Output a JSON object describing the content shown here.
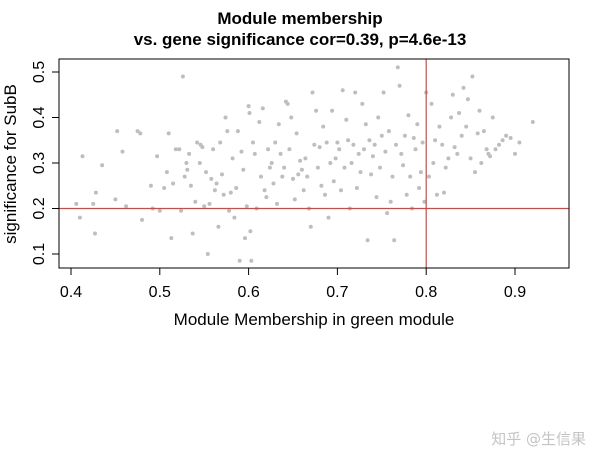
{
  "chart_data": {
    "type": "scatter",
    "title": "Module membership",
    "subtitle": "vs. gene significance cor=0.39, p=4.6e-13",
    "xlabel": "Module Membership in green module",
    "ylabel": "significance for SubB",
    "xlim": [
      0.385,
      0.94
    ],
    "ylim": [
      0.07,
      0.53
    ],
    "xticks": [
      "0.4",
      "0.5",
      "0.6",
      "0.7",
      "0.8",
      "0.9"
    ],
    "yticks": [
      "0.1",
      "0.2",
      "0.3",
      "0.4",
      "0.5"
    ],
    "grid": false,
    "legend": null,
    "point_color": "#bebebe",
    "reference_lines": {
      "vertical": {
        "x": 0.8,
        "color": "#c0504d"
      },
      "horizontal": {
        "y": 0.2,
        "color": "#c0504d"
      }
    },
    "cor": 0.39,
    "p_value": "4.6e-13",
    "points": [
      [
        0.406,
        0.21
      ],
      [
        0.41,
        0.18
      ],
      [
        0.413,
        0.315
      ],
      [
        0.425,
        0.21
      ],
      [
        0.427,
        0.145
      ],
      [
        0.428,
        0.235
      ],
      [
        0.435,
        0.295
      ],
      [
        0.45,
        0.22
      ],
      [
        0.452,
        0.37
      ],
      [
        0.458,
        0.325
      ],
      [
        0.462,
        0.205
      ],
      [
        0.475,
        0.37
      ],
      [
        0.478,
        0.365
      ],
      [
        0.48,
        0.175
      ],
      [
        0.49,
        0.25
      ],
      [
        0.492,
        0.2
      ],
      [
        0.497,
        0.315
      ],
      [
        0.5,
        0.195
      ],
      [
        0.505,
        0.245
      ],
      [
        0.508,
        0.28
      ],
      [
        0.51,
        0.365
      ],
      [
        0.513,
        0.135
      ],
      [
        0.515,
        0.255
      ],
      [
        0.518,
        0.33
      ],
      [
        0.522,
        0.33
      ],
      [
        0.524,
        0.195
      ],
      [
        0.526,
        0.49
      ],
      [
        0.528,
        0.27
      ],
      [
        0.53,
        0.3
      ],
      [
        0.531,
        0.285
      ],
      [
        0.533,
        0.32
      ],
      [
        0.535,
        0.25
      ],
      [
        0.537,
        0.145
      ],
      [
        0.54,
        0.215
      ],
      [
        0.542,
        0.345
      ],
      [
        0.545,
        0.3
      ],
      [
        0.546,
        0.34
      ],
      [
        0.548,
        0.335
      ],
      [
        0.55,
        0.205
      ],
      [
        0.552,
        0.28
      ],
      [
        0.554,
        0.1
      ],
      [
        0.556,
        0.21
      ],
      [
        0.558,
        0.265
      ],
      [
        0.56,
        0.33
      ],
      [
        0.562,
        0.24
      ],
      [
        0.564,
        0.255
      ],
      [
        0.566,
        0.16
      ],
      [
        0.568,
        0.345
      ],
      [
        0.57,
        0.275
      ],
      [
        0.572,
        0.23
      ],
      [
        0.574,
        0.4
      ],
      [
        0.576,
        0.37
      ],
      [
        0.578,
        0.195
      ],
      [
        0.58,
        0.235
      ],
      [
        0.582,
        0.31
      ],
      [
        0.584,
        0.18
      ],
      [
        0.586,
        0.245
      ],
      [
        0.588,
        0.37
      ],
      [
        0.59,
        0.085
      ],
      [
        0.592,
        0.325
      ],
      [
        0.594,
        0.285
      ],
      [
        0.596,
        0.135
      ],
      [
        0.598,
        0.205
      ],
      [
        0.6,
        0.425
      ],
      [
        0.601,
        0.41
      ],
      [
        0.602,
        0.15
      ],
      [
        0.603,
        0.085
      ],
      [
        0.605,
        0.345
      ],
      [
        0.607,
        0.32
      ],
      [
        0.609,
        0.2
      ],
      [
        0.612,
        0.39
      ],
      [
        0.614,
        0.27
      ],
      [
        0.616,
        0.42
      ],
      [
        0.618,
        0.24
      ],
      [
        0.62,
        0.225
      ],
      [
        0.622,
        0.33
      ],
      [
        0.624,
        0.29
      ],
      [
        0.626,
        0.3
      ],
      [
        0.628,
        0.255
      ],
      [
        0.63,
        0.345
      ],
      [
        0.632,
        0.21
      ],
      [
        0.634,
        0.385
      ],
      [
        0.636,
        0.32
      ],
      [
        0.638,
        0.27
      ],
      [
        0.64,
        0.29
      ],
      [
        0.642,
        0.435
      ],
      [
        0.644,
        0.43
      ],
      [
        0.646,
        0.33
      ],
      [
        0.648,
        0.4
      ],
      [
        0.65,
        0.265
      ],
      [
        0.652,
        0.22
      ],
      [
        0.654,
        0.365
      ],
      [
        0.656,
        0.275
      ],
      [
        0.658,
        0.305
      ],
      [
        0.66,
        0.285
      ],
      [
        0.662,
        0.24
      ],
      [
        0.664,
        0.31
      ],
      [
        0.666,
        0.27
      ],
      [
        0.668,
        0.2
      ],
      [
        0.67,
        0.16
      ],
      [
        0.672,
        0.455
      ],
      [
        0.674,
        0.34
      ],
      [
        0.676,
        0.415
      ],
      [
        0.678,
        0.29
      ],
      [
        0.68,
        0.335
      ],
      [
        0.682,
        0.25
      ],
      [
        0.684,
        0.38
      ],
      [
        0.686,
        0.23
      ],
      [
        0.688,
        0.345
      ],
      [
        0.69,
        0.18
      ],
      [
        0.692,
        0.3
      ],
      [
        0.694,
        0.415
      ],
      [
        0.696,
        0.26
      ],
      [
        0.698,
        0.31
      ],
      [
        0.7,
        0.345
      ],
      [
        0.702,
        0.33
      ],
      [
        0.704,
        0.24
      ],
      [
        0.706,
        0.46
      ],
      [
        0.708,
        0.29
      ],
      [
        0.71,
        0.395
      ],
      [
        0.712,
        0.35
      ],
      [
        0.714,
        0.2
      ],
      [
        0.716,
        0.3
      ],
      [
        0.718,
        0.34
      ],
      [
        0.72,
        0.455
      ],
      [
        0.722,
        0.245
      ],
      [
        0.724,
        0.32
      ],
      [
        0.726,
        0.28
      ],
      [
        0.728,
        0.43
      ],
      [
        0.73,
        0.33
      ],
      [
        0.732,
        0.385
      ],
      [
        0.734,
        0.13
      ],
      [
        0.736,
        0.35
      ],
      [
        0.738,
        0.275
      ],
      [
        0.74,
        0.315
      ],
      [
        0.742,
        0.34
      ],
      [
        0.744,
        0.225
      ],
      [
        0.746,
        0.4
      ],
      [
        0.748,
        0.29
      ],
      [
        0.75,
        0.36
      ],
      [
        0.752,
        0.455
      ],
      [
        0.754,
        0.325
      ],
      [
        0.756,
        0.19
      ],
      [
        0.758,
        0.37
      ],
      [
        0.76,
        0.215
      ],
      [
        0.762,
        0.27
      ],
      [
        0.764,
        0.13
      ],
      [
        0.766,
        0.34
      ],
      [
        0.768,
        0.51
      ],
      [
        0.77,
        0.47
      ],
      [
        0.772,
        0.32
      ],
      [
        0.774,
        0.295
      ],
      [
        0.776,
        0.36
      ],
      [
        0.778,
        0.23
      ],
      [
        0.78,
        0.405
      ],
      [
        0.782,
        0.27
      ],
      [
        0.784,
        0.2
      ],
      [
        0.786,
        0.355
      ],
      [
        0.788,
        0.33
      ],
      [
        0.79,
        0.385
      ],
      [
        0.792,
        0.245
      ],
      [
        0.794,
        0.28
      ],
      [
        0.796,
        0.345
      ],
      [
        0.798,
        0.215
      ],
      [
        0.8,
        0.455
      ],
      [
        0.803,
        0.27
      ],
      [
        0.806,
        0.43
      ],
      [
        0.808,
        0.3
      ],
      [
        0.81,
        0.35
      ],
      [
        0.812,
        0.23
      ],
      [
        0.815,
        0.38
      ],
      [
        0.818,
        0.34
      ],
      [
        0.82,
        0.235
      ],
      [
        0.822,
        0.29
      ],
      [
        0.825,
        0.31
      ],
      [
        0.828,
        0.4
      ],
      [
        0.83,
        0.45
      ],
      [
        0.832,
        0.335
      ],
      [
        0.835,
        0.32
      ],
      [
        0.837,
        0.41
      ],
      [
        0.84,
        0.36
      ],
      [
        0.842,
        0.465
      ],
      [
        0.845,
        0.38
      ],
      [
        0.847,
        0.44
      ],
      [
        0.85,
        0.31
      ],
      [
        0.852,
        0.49
      ],
      [
        0.855,
        0.28
      ],
      [
        0.858,
        0.365
      ],
      [
        0.86,
        0.415
      ],
      [
        0.862,
        0.3
      ],
      [
        0.865,
        0.37
      ],
      [
        0.868,
        0.33
      ],
      [
        0.87,
        0.32
      ],
      [
        0.872,
        0.315
      ],
      [
        0.875,
        0.4
      ],
      [
        0.878,
        0.33
      ],
      [
        0.882,
        0.34
      ],
      [
        0.886,
        0.35
      ],
      [
        0.89,
        0.36
      ],
      [
        0.895,
        0.355
      ],
      [
        0.9,
        0.32
      ],
      [
        0.905,
        0.345
      ],
      [
        0.92,
        0.39
      ]
    ]
  },
  "watermark": "知乎 @生信果"
}
